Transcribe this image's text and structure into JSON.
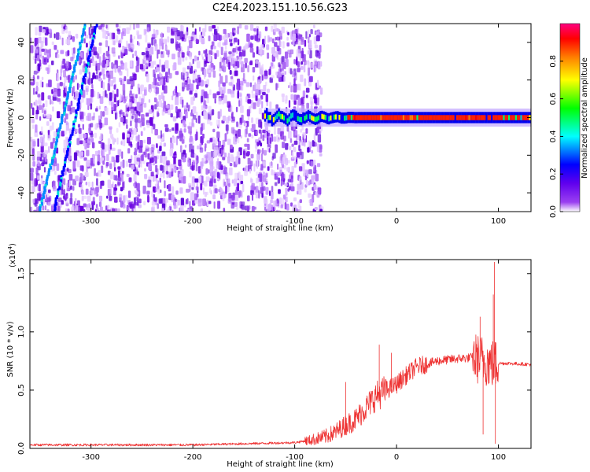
{
  "figure": {
    "title": "C2E4.2023.151.10.56.G23"
  },
  "chart_data": [
    {
      "type": "heatmap",
      "title": "C2E4.2023.151.10.56.G23",
      "xlabel": "Height of straight line (km)",
      "ylabel": "Frequency (Hz)",
      "xlim": [
        -360,
        132
      ],
      "ylim": [
        -50,
        50
      ],
      "xticks": [
        -300,
        -200,
        -100,
        0,
        100
      ],
      "xtick_labels": [
        "-300",
        "-200",
        "-100",
        "0",
        "100"
      ],
      "yticks": [
        -40,
        -20,
        0,
        20,
        40
      ],
      "ytick_labels": [
        "-40",
        "-20",
        "0",
        "20",
        "40"
      ],
      "grid": false,
      "colorbar": {
        "label": "Normalized spectral amplitude",
        "range": [
          0,
          1
        ],
        "ticks": [
          0.0,
          0.2,
          0.4,
          0.6,
          0.8
        ],
        "tick_labels": [
          "0.0",
          "0.2",
          "0.4",
          "0.6",
          "0.8"
        ],
        "colormap": [
          "#ffffff",
          "#7a00e0",
          "#0000ff",
          "#00ffff",
          "#00ff00",
          "#ffff00",
          "#ff8000",
          "#ff0000",
          "#ff0080"
        ]
      },
      "noise_extent_x": [
        -360,
        -75
      ],
      "signal_band": {
        "x_start": -130,
        "x_end": 132,
        "center_hz": 0,
        "halfwidth_hz": 3
      },
      "streaks": [
        {
          "x_at_top": -307,
          "x_at_bottom": -352,
          "color": "#0088ff"
        },
        {
          "x_at_top": -296,
          "x_at_bottom": -338,
          "color": "#0000ff"
        }
      ]
    },
    {
      "type": "line",
      "xlabel": "Height of straight line (km)",
      "ylabel": "SNR (10 * v/v)",
      "y_multiplier": "(x10",
      "y_multiplier_exp": "4",
      "y_multiplier_close": ")",
      "xlim": [
        -360,
        132
      ],
      "ylim": [
        0,
        1.62
      ],
      "xticks": [
        -300,
        -200,
        -100,
        0,
        100
      ],
      "xtick_labels": [
        "-300",
        "-200",
        "-100",
        "0",
        "100"
      ],
      "yticks": [
        0.0,
        0.5,
        1.0,
        1.5
      ],
      "ytick_labels": [
        "0.0",
        "0.5",
        "1.0",
        "1.5"
      ],
      "grid": false,
      "series_color": "#ee3333",
      "envelope": {
        "x": [
          -360,
          -200,
          -100,
          -85,
          -70,
          -60,
          -50,
          -40,
          -30,
          -20,
          -10,
          0,
          10,
          20,
          40,
          60,
          75,
          85,
          95,
          100,
          110,
          132
        ],
        "y": [
          0.03,
          0.03,
          0.05,
          0.07,
          0.1,
          0.14,
          0.2,
          0.25,
          0.35,
          0.45,
          0.5,
          0.55,
          0.63,
          0.7,
          0.75,
          0.77,
          0.78,
          0.76,
          0.72,
          0.73,
          0.73,
          0.72
        ]
      },
      "peaks": [
        {
          "x": 96,
          "y": 1.6
        },
        {
          "x": 95,
          "y": 1.32
        },
        {
          "x": 82,
          "y": 1.13
        },
        {
          "x": -17,
          "y": 0.89
        },
        {
          "x": -5,
          "y": 0.82
        },
        {
          "x": -50,
          "y": 0.57
        },
        {
          "x": 97,
          "y": 0.04
        },
        {
          "x": 85,
          "y": 0.12
        }
      ]
    }
  ]
}
